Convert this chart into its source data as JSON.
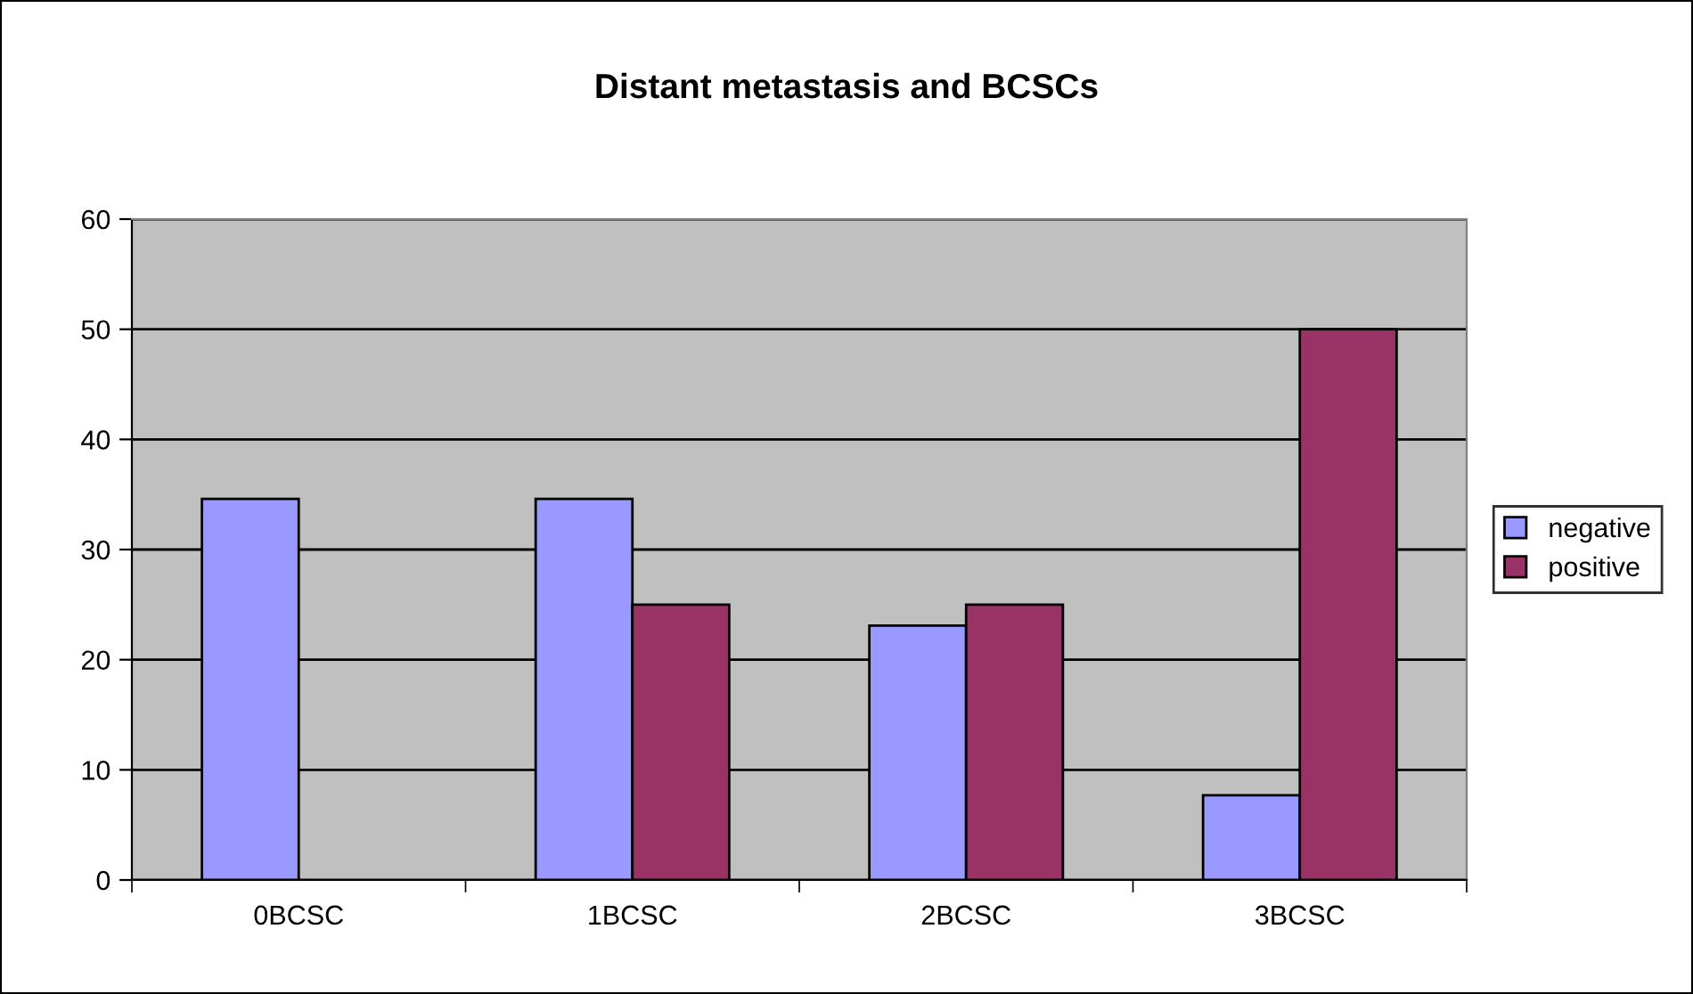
{
  "chart_data": {
    "type": "bar",
    "title": "Distant metastasis and BCSCs",
    "categories": [
      "0BCSC",
      "1BCSC",
      "2BCSC",
      "3BCSC"
    ],
    "series": [
      {
        "name": "negative",
        "color": "#9999ff",
        "values": [
          34.6,
          34.6,
          23.1,
          7.7
        ]
      },
      {
        "name": "positive",
        "color": "#993366",
        "values": [
          null,
          25,
          25,
          50
        ]
      }
    ],
    "ylim": [
      0,
      60
    ],
    "yticks": [
      0,
      10,
      20,
      30,
      40,
      50,
      60
    ],
    "grid": "y",
    "legend": "right"
  }
}
